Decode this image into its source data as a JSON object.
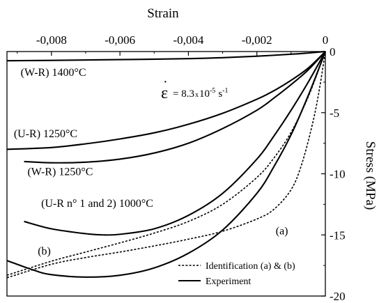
{
  "chart_data": {
    "type": "line",
    "title": "",
    "xlabel": "Strain",
    "ylabel": "Stress (MPa)",
    "xlim": [
      -0.0093,
      0.0
    ],
    "ylim": [
      -20,
      0
    ],
    "x_axis_position": "top",
    "y_axis_position": "right",
    "x_ticks": [
      -0.008,
      -0.006,
      -0.004,
      -0.002,
      0
    ],
    "x_tick_labels": [
      "-0,008",
      "-0,006",
      "-0,004",
      "-0,002",
      "0"
    ],
    "y_ticks": [
      0,
      -5,
      -10,
      -15,
      -20
    ],
    "y_tick_labels": [
      "0",
      "-5",
      "-10",
      "-15",
      "-20"
    ],
    "grid": false,
    "legend_position": "bottom-right",
    "legend": [
      {
        "label": "Identification (a) & (b)",
        "style": "dashed"
      },
      {
        "label": "Experiment",
        "style": "solid"
      }
    ],
    "series": [
      {
        "name": "(W-R) 1400°C",
        "style": "solid",
        "kind": "experiment",
        "points": [
          [
            -0.0093,
            -0.75
          ],
          [
            -0.008,
            -0.72
          ],
          [
            -0.006,
            -0.66
          ],
          [
            -0.004,
            -0.58
          ],
          [
            -0.003,
            -0.5
          ],
          [
            -0.002,
            -0.38
          ],
          [
            -0.001,
            -0.22
          ],
          [
            -0.0005,
            -0.12
          ],
          [
            0,
            0
          ]
        ]
      },
      {
        "name": "(U-R) 1250°C",
        "style": "solid",
        "kind": "experiment",
        "points": [
          [
            -0.0093,
            -8.0
          ],
          [
            -0.008,
            -7.85
          ],
          [
            -0.007,
            -7.55
          ],
          [
            -0.006,
            -7.15
          ],
          [
            -0.005,
            -6.65
          ],
          [
            -0.004,
            -5.95
          ],
          [
            -0.003,
            -5.05
          ],
          [
            -0.002,
            -3.9
          ],
          [
            -0.0015,
            -3.2
          ],
          [
            -0.001,
            -2.35
          ],
          [
            -0.0005,
            -1.35
          ],
          [
            0,
            0
          ]
        ]
      },
      {
        "name": "(W-R) 1250°C",
        "style": "solid",
        "kind": "experiment",
        "points": [
          [
            -0.0088,
            -9.0
          ],
          [
            -0.008,
            -9.1
          ],
          [
            -0.007,
            -9.05
          ],
          [
            -0.006,
            -8.8
          ],
          [
            -0.005,
            -8.3
          ],
          [
            -0.004,
            -7.5
          ],
          [
            -0.003,
            -6.3
          ],
          [
            -0.002,
            -4.8
          ],
          [
            -0.0015,
            -3.8
          ],
          [
            -0.001,
            -2.7
          ],
          [
            -0.0005,
            -1.5
          ],
          [
            0,
            0
          ]
        ]
      },
      {
        "name": "(U-R n° 1 and 2) 1000°C",
        "style": "solid",
        "kind": "experiment",
        "points": [
          [
            -0.0088,
            -13.9
          ],
          [
            -0.008,
            -14.5
          ],
          [
            -0.007,
            -14.9
          ],
          [
            -0.0065,
            -15.0
          ],
          [
            -0.006,
            -14.95
          ],
          [
            -0.005,
            -14.5
          ],
          [
            -0.004,
            -13.4
          ],
          [
            -0.003,
            -11.6
          ],
          [
            -0.002,
            -8.8
          ],
          [
            -0.0015,
            -6.9
          ],
          [
            -0.001,
            -4.8
          ],
          [
            -0.0005,
            -2.5
          ],
          [
            0,
            0
          ]
        ]
      },
      {
        "name": "",
        "style": "solid",
        "kind": "experiment",
        "points": [
          [
            -0.0093,
            -17.1
          ],
          [
            -0.0085,
            -17.9
          ],
          [
            -0.008,
            -18.25
          ],
          [
            -0.007,
            -18.45
          ],
          [
            -0.006,
            -18.3
          ],
          [
            -0.005,
            -17.7
          ],
          [
            -0.004,
            -16.5
          ],
          [
            -0.003,
            -14.6
          ],
          [
            -0.002,
            -11.6
          ],
          [
            -0.0015,
            -9.4
          ],
          [
            -0.001,
            -6.8
          ],
          [
            -0.0005,
            -3.6
          ],
          [
            0,
            0
          ]
        ]
      },
      {
        "name": "(a)",
        "style": "dashed",
        "kind": "identification",
        "points": [
          [
            -0.0093,
            -18.5
          ],
          [
            -0.008,
            -17.4
          ],
          [
            -0.007,
            -16.85
          ],
          [
            -0.006,
            -16.4
          ],
          [
            -0.005,
            -15.9
          ],
          [
            -0.004,
            -15.35
          ],
          [
            -0.003,
            -14.7
          ],
          [
            -0.002,
            -13.7
          ],
          [
            -0.0015,
            -12.9
          ],
          [
            -0.001,
            -11.3
          ],
          [
            -0.0007,
            -9.3
          ],
          [
            -0.0004,
            -6.2
          ],
          [
            -0.0002,
            -3.5
          ],
          [
            0,
            0
          ]
        ]
      },
      {
        "name": "(b)",
        "style": "dashed",
        "kind": "identification",
        "points": [
          [
            -0.0093,
            -18.3
          ],
          [
            -0.008,
            -17.15
          ],
          [
            -0.007,
            -16.4
          ],
          [
            -0.006,
            -15.65
          ],
          [
            -0.005,
            -14.85
          ],
          [
            -0.004,
            -13.9
          ],
          [
            -0.003,
            -12.5
          ],
          [
            -0.002,
            -10.3
          ],
          [
            -0.0015,
            -8.7
          ],
          [
            -0.001,
            -6.6
          ],
          [
            -0.0005,
            -3.7
          ],
          [
            0,
            0
          ]
        ]
      }
    ],
    "annotations": [
      {
        "text": "(W-R) 1400°C",
        "x": -0.0089,
        "y": -2.0
      },
      {
        "text": "(U-R) 1250°C",
        "x": -0.0091,
        "y": -7.0
      },
      {
        "text": "(W-R) 1250°C",
        "x": -0.0087,
        "y": -10.1
      },
      {
        "text": "(U-R n° 1 and 2) 1000°C",
        "x": -0.0083,
        "y": -12.7
      },
      {
        "text": "(a)",
        "x": -0.00145,
        "y": -14.95
      },
      {
        "text": "(b)",
        "x": -0.0084,
        "y": -16.6
      }
    ],
    "strain_rate_label": {
      "prefix": "= 8.3",
      "times": "x",
      "base": "10",
      "exponent": "-5",
      "unit": "s",
      "unit_exponent": "-1"
    }
  }
}
